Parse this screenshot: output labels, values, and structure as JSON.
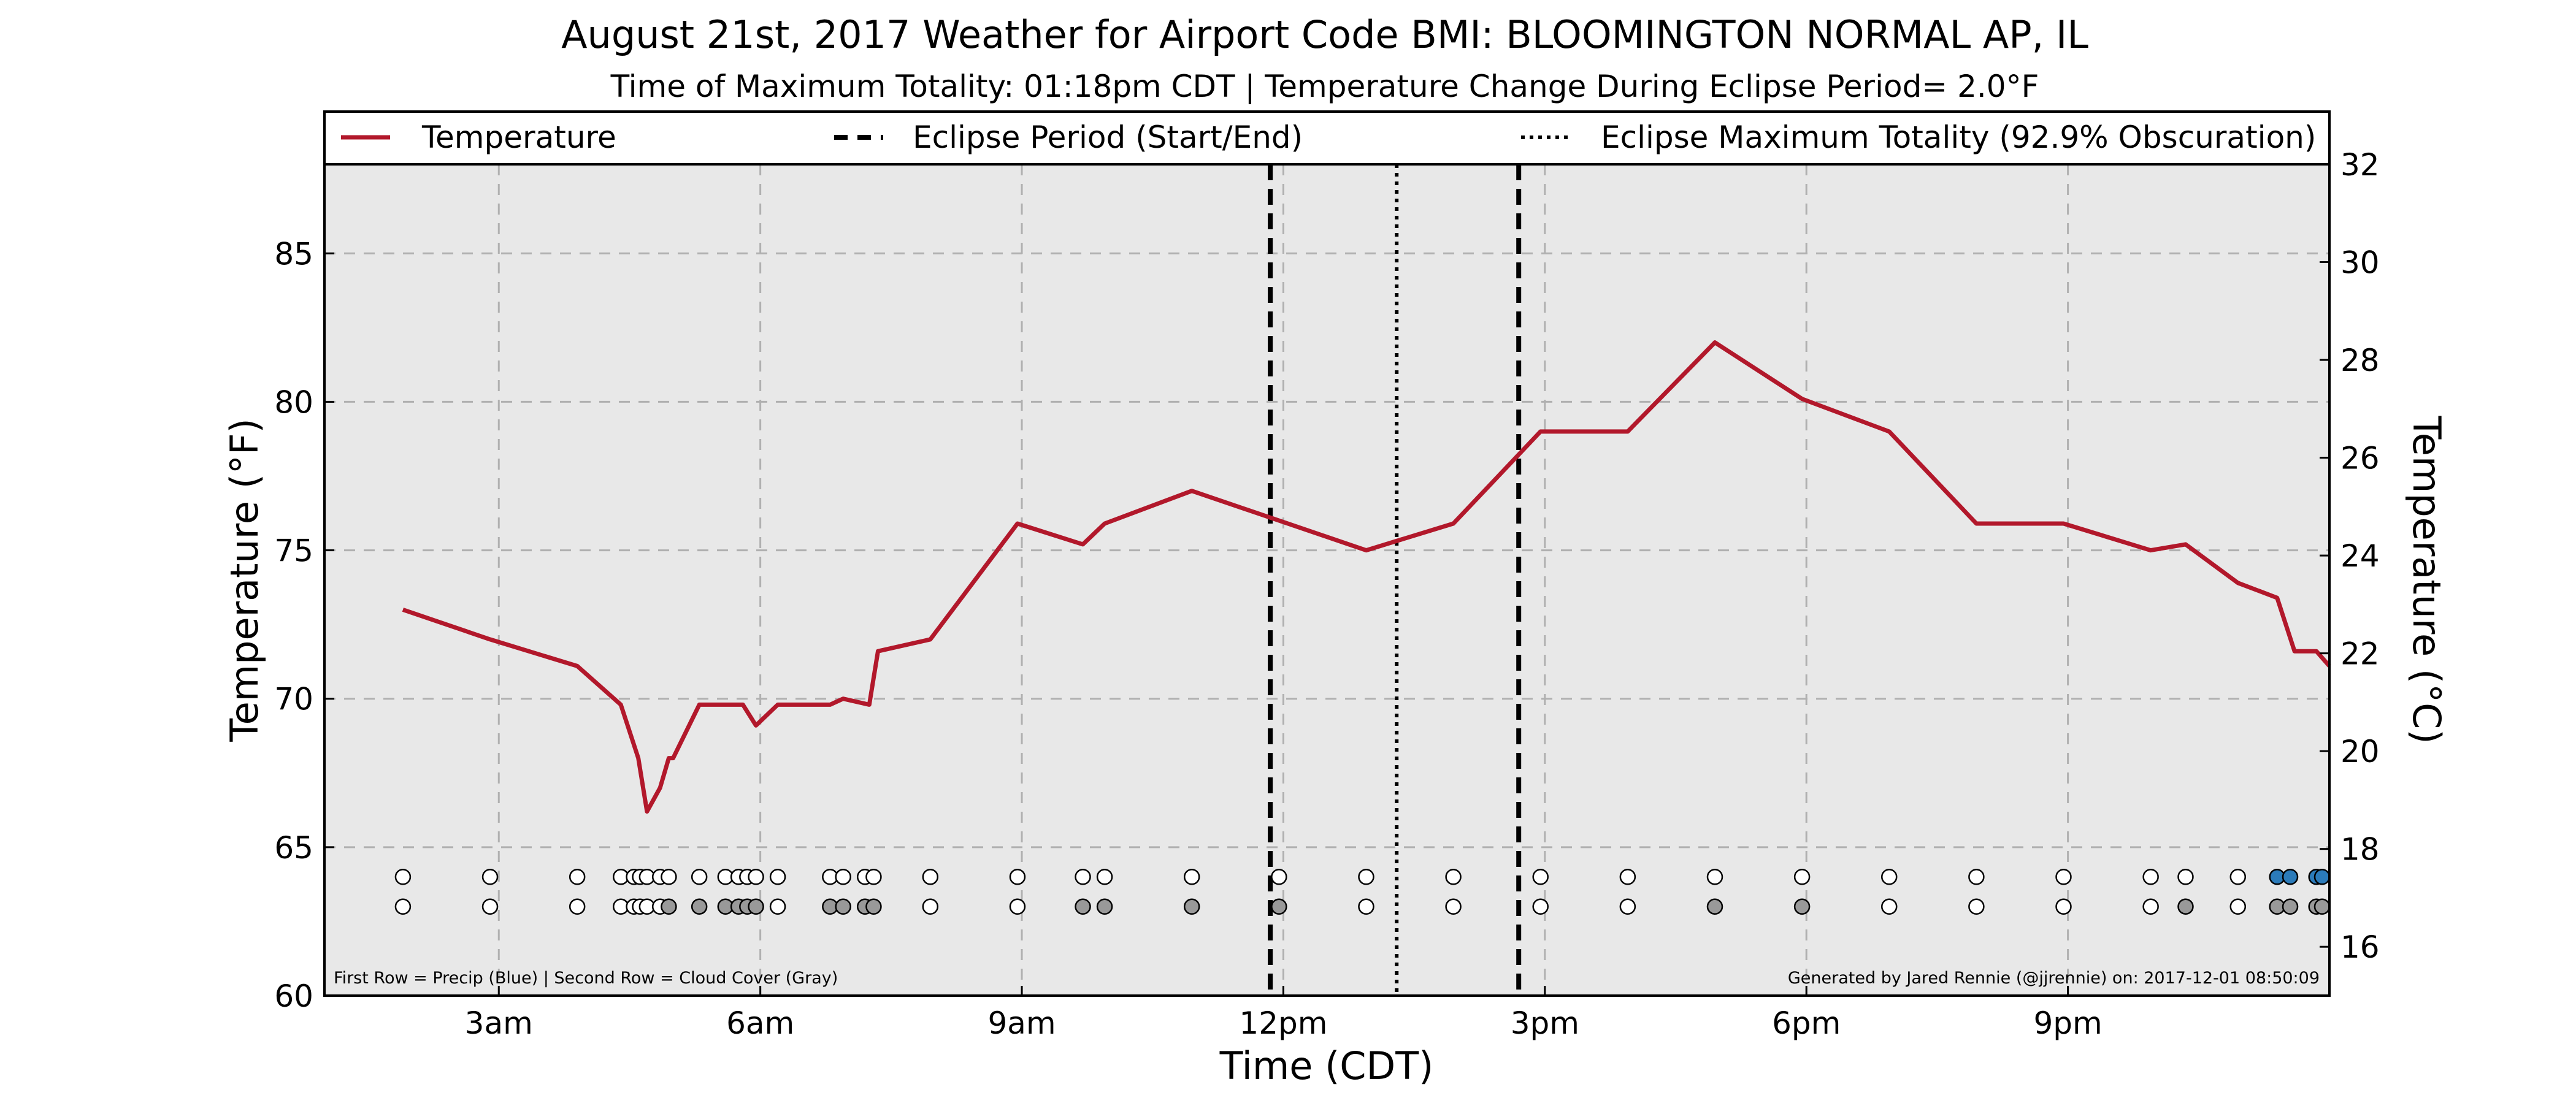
{
  "chart_data": {
    "type": "line",
    "title": "August 21st, 2017 Weather for Airport Code BMI: BLOOMINGTON NORMAL AP, IL",
    "subtitle": "Time of Maximum Totality: 01:18pm CDT | Temperature Change During Eclipse Period= 2.0°F",
    "xlabel": "Time (CDT)",
    "ylabel_left": "Temperature (°F)",
    "ylabel_right": "Temperature (°C)",
    "xlim": [
      1.0,
      24.0
    ],
    "ylim_left": [
      60,
      88
    ],
    "ylim_right": [
      15,
      32
    ],
    "x_ticks": [
      {
        "x": 3,
        "label": "3am"
      },
      {
        "x": 6,
        "label": "6am"
      },
      {
        "x": 9,
        "label": "9am"
      },
      {
        "x": 12,
        "label": "12pm"
      },
      {
        "x": 15,
        "label": "3pm"
      },
      {
        "x": 18,
        "label": "6pm"
      },
      {
        "x": 21,
        "label": "9pm"
      }
    ],
    "y_ticks_left": [
      60,
      65,
      70,
      75,
      80,
      85
    ],
    "y_ticks_right": [
      16,
      18,
      20,
      22,
      24,
      26,
      28,
      30,
      32
    ],
    "grid": true,
    "legend_position": "top",
    "legend": {
      "temperature": "Temperature",
      "eclipse_period": "Eclipse Period (Start/End)",
      "max_totality": "Eclipse Maximum Totality (92.9% Obscuration)"
    },
    "eclipse_start": 11.85,
    "eclipse_end": 14.7,
    "max_totality_x": 13.3,
    "temperature_series": {
      "name": "Temperature",
      "color": "#b2182b",
      "x": [
        1.9,
        2.9,
        3.9,
        4.4,
        4.6,
        4.7,
        4.85,
        4.95,
        5.0,
        5.3,
        5.8,
        5.95,
        6.2,
        6.8,
        6.95,
        7.25,
        7.35,
        7.95,
        8.95,
        9.7,
        9.95,
        10.95,
        11.95,
        12.95,
        13.95,
        14.95,
        15.95,
        16.95,
        17.95,
        18.95,
        19.95,
        20.95,
        21.95,
        22.35,
        22.95,
        23.4,
        23.6,
        23.85,
        24.0
      ],
      "y": [
        73,
        72,
        71.1,
        69.8,
        68,
        66.2,
        67,
        68,
        68,
        69.8,
        69.8,
        69.1,
        69.8,
        69.8,
        70,
        69.8,
        71.6,
        72,
        75.9,
        75.2,
        75.9,
        77,
        76,
        75,
        75.9,
        79,
        79,
        82,
        80.1,
        79,
        75.9,
        75.9,
        75,
        75.2,
        73.9,
        73.4,
        71.6,
        71.6,
        71.1
      ]
    },
    "observation_times": [
      1.9,
      2.9,
      3.9,
      4.4,
      4.55,
      4.62,
      4.7,
      4.85,
      4.95,
      5.3,
      5.6,
      5.75,
      5.85,
      5.95,
      6.2,
      6.8,
      6.95,
      7.2,
      7.3,
      7.95,
      8.95,
      9.7,
      9.95,
      10.95,
      11.95,
      12.95,
      13.95,
      14.95,
      15.95,
      16.95,
      17.95,
      18.95,
      19.95,
      20.95,
      21.95,
      22.35,
      22.95,
      23.4,
      23.55,
      23.85,
      23.95
    ],
    "precip_flags": [
      0,
      0,
      0,
      0,
      0,
      0,
      0,
      0,
      0,
      0,
      0,
      0,
      0,
      0,
      0,
      0,
      0,
      0,
      0,
      0,
      0,
      0,
      0,
      0,
      0,
      0,
      0,
      0,
      0,
      0,
      0,
      0,
      0,
      0,
      0,
      0,
      0,
      1,
      1,
      1,
      1
    ],
    "cloud_flags": [
      0,
      0,
      0,
      0,
      0,
      0,
      0,
      0,
      1,
      1,
      1,
      1,
      1,
      1,
      0,
      1,
      1,
      1,
      1,
      0,
      0,
      1,
      1,
      1,
      1,
      0,
      0,
      0,
      0,
      1,
      1,
      0,
      0,
      0,
      0,
      1,
      0,
      1,
      1,
      1,
      1
    ],
    "colors": {
      "precip": "#2b7bba",
      "cloud": "#999999",
      "empty": "#ffffff",
      "plot_bg": "#e8e8e8",
      "grid": "#b0b0b0"
    },
    "footnote_left": "First Row = Precip (Blue) | Second Row = Cloud Cover (Gray)",
    "footnote_right": "Generated by Jared Rennie (@jjrennie) on: 2017-12-01 08:50:09"
  }
}
